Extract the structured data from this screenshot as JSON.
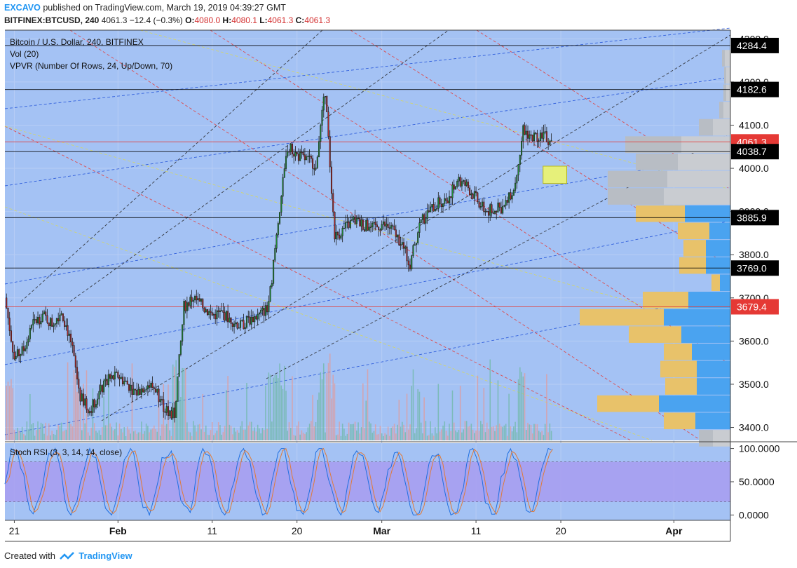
{
  "header": {
    "author": "EXCAVO",
    "published_text": "published on TradingView.com, March 19, 2019 04:39:27 GMT",
    "symbol": "BITFINEX:BTCUSD, 240",
    "last": "4061.3",
    "change": "−12.4 (−0.3%)",
    "ohlc": {
      "O": "4080.0",
      "H": "4080.1",
      "L": "4061.3",
      "C": "4061.3"
    }
  },
  "legend": {
    "title": "Bitcoin / U.S. Dollar, 240, BITFINEX",
    "vol": "Vol (20)",
    "vpvr": "VPVR (Number Of Rows, 24, Up/Down, 70)",
    "stoch": "Stoch RSI (3, 3, 14, 14, close)"
  },
  "footer": {
    "created_with": "Created with",
    "brand": "TradingView"
  },
  "colors": {
    "background": "#a4c2f4",
    "candle_up": "#1e8c36",
    "candle_down": "#b02727",
    "level_red": "#e53935",
    "level_black": "#000000",
    "vpvr_up": "#4aa3f0",
    "vpvr_down": "#e8c26a",
    "vpvr_gray": "#c9ccd1",
    "stoch_band": "#a89cf0",
    "highlight_box": "#e6f07a"
  },
  "chart_data": {
    "type": "candlestick",
    "symbol": "BITFINEX:BTCUSD",
    "timeframe": "240",
    "y_range": [
      3370,
      4320
    ],
    "y_ticks": [
      3400,
      3500,
      3600,
      3700,
      3800,
      3900,
      4000,
      4100,
      4200,
      4300
    ],
    "y_tick_labels": [
      "3400.0",
      "3500.0",
      "3600.0",
      "3700.0",
      "3800.0",
      "3900.0",
      "4000.0",
      "4100.0",
      "4200.0",
      "4300.0"
    ],
    "x_range": [
      "2019-01-20",
      "2019-04-07"
    ],
    "x_ticks": [
      {
        "date": "2019-01-21",
        "label": "21"
      },
      {
        "date": "2019-02-01",
        "label": "Feb"
      },
      {
        "date": "2019-02-11",
        "label": "11"
      },
      {
        "date": "2019-02-20",
        "label": "20"
      },
      {
        "date": "2019-03-01",
        "label": "Mar"
      },
      {
        "date": "2019-03-11",
        "label": "11"
      },
      {
        "date": "2019-03-20",
        "label": "20"
      },
      {
        "date": "2019-04-01",
        "label": "Apr"
      }
    ],
    "price_path": [
      [
        "2019-01-20",
        3700
      ],
      [
        "2019-01-21",
        3560
      ],
      [
        "2019-01-22",
        3580
      ],
      [
        "2019-01-23",
        3640
      ],
      [
        "2019-01-24",
        3660
      ],
      [
        "2019-01-25",
        3640
      ],
      [
        "2019-01-26",
        3670
      ],
      [
        "2019-01-27",
        3600
      ],
      [
        "2019-01-28",
        3470
      ],
      [
        "2019-01-29",
        3440
      ],
      [
        "2019-01-30",
        3480
      ],
      [
        "2019-01-31",
        3510
      ],
      [
        "2019-02-01",
        3520
      ],
      [
        "2019-02-02",
        3500
      ],
      [
        "2019-02-03",
        3480
      ],
      [
        "2019-02-04",
        3500
      ],
      [
        "2019-02-05",
        3490
      ],
      [
        "2019-02-06",
        3440
      ],
      [
        "2019-02-07",
        3430
      ],
      [
        "2019-02-08",
        3680
      ],
      [
        "2019-02-09",
        3700
      ],
      [
        "2019-02-10",
        3680
      ],
      [
        "2019-02-11",
        3660
      ],
      [
        "2019-02-12",
        3665
      ],
      [
        "2019-02-13",
        3650
      ],
      [
        "2019-02-14",
        3635
      ],
      [
        "2019-02-15",
        3650
      ],
      [
        "2019-02-16",
        3660
      ],
      [
        "2019-02-17",
        3680
      ],
      [
        "2019-02-18",
        3880
      ],
      [
        "2019-02-19",
        4050
      ],
      [
        "2019-02-20",
        4030
      ],
      [
        "2019-02-21",
        4020
      ],
      [
        "2019-02-22",
        4010
      ],
      [
        "2019-02-23",
        4180
      ],
      [
        "2019-02-24",
        3840
      ],
      [
        "2019-02-25",
        3860
      ],
      [
        "2019-02-26",
        3880
      ],
      [
        "2019-02-27",
        3870
      ],
      [
        "2019-02-28",
        3860
      ],
      [
        "2019-03-01",
        3870
      ],
      [
        "2019-03-02",
        3860
      ],
      [
        "2019-03-03",
        3830
      ],
      [
        "2019-03-04",
        3780
      ],
      [
        "2019-03-05",
        3870
      ],
      [
        "2019-03-06",
        3900
      ],
      [
        "2019-03-07",
        3920
      ],
      [
        "2019-03-08",
        3930
      ],
      [
        "2019-03-09",
        3970
      ],
      [
        "2019-03-10",
        3960
      ],
      [
        "2019-03-11",
        3930
      ],
      [
        "2019-03-12",
        3900
      ],
      [
        "2019-03-13",
        3905
      ],
      [
        "2019-03-14",
        3910
      ],
      [
        "2019-03-15",
        3950
      ],
      [
        "2019-03-16",
        4090
      ],
      [
        "2019-03-17",
        4070
      ],
      [
        "2019-03-18",
        4080
      ],
      [
        "2019-03-19",
        4061
      ]
    ],
    "levels": [
      {
        "price": 4284.4,
        "label": "4284.4",
        "color": "black"
      },
      {
        "price": 4182.6,
        "label": "4182.6",
        "color": "black"
      },
      {
        "price": 4061.3,
        "label": "4061.3",
        "color": "red"
      },
      {
        "price": 4038.7,
        "label": "4038.7",
        "color": "black"
      },
      {
        "price": 3885.9,
        "label": "3885.9",
        "color": "black"
      },
      {
        "price": 3769.0,
        "label": "3769.0",
        "color": "black"
      },
      {
        "price": 3679.4,
        "label": "3679.4",
        "color": "red"
      }
    ],
    "highlight_box": {
      "date_start": "2019-03-17",
      "date_end": "2019-03-21",
      "price_low": 3965,
      "price_high": 4005
    },
    "vpvr": [
      {
        "price": 4255,
        "up": 8,
        "down": 4,
        "gray": true
      },
      {
        "price": 4215,
        "up": 6,
        "down": 3,
        "gray": true
      },
      {
        "price": 4175,
        "up": 6,
        "down": 4,
        "gray": true
      },
      {
        "price": 4135,
        "up": 10,
        "down": 6,
        "gray": true
      },
      {
        "price": 4095,
        "up": 25,
        "down": 20,
        "gray": true
      },
      {
        "price": 4055,
        "up": 70,
        "down": 80,
        "gray": true
      },
      {
        "price": 4015,
        "up": 75,
        "down": 60,
        "gray": true
      },
      {
        "price": 3975,
        "up": 90,
        "down": 85,
        "gray": true
      },
      {
        "price": 3935,
        "up": 95,
        "down": 80,
        "gray": true
      },
      {
        "price": 3895,
        "up": 65,
        "down": 70,
        "gray": false
      },
      {
        "price": 3855,
        "up": 30,
        "down": 45,
        "gray": false
      },
      {
        "price": 3815,
        "up": 35,
        "down": 32,
        "gray": false
      },
      {
        "price": 3775,
        "up": 35,
        "down": 38,
        "gray": false
      },
      {
        "price": 3735,
        "up": 15,
        "down": 12,
        "gray": false
      },
      {
        "price": 3695,
        "up": 60,
        "down": 65,
        "gray": false
      },
      {
        "price": 3655,
        "up": 95,
        "down": 120,
        "gray": false
      },
      {
        "price": 3615,
        "up": 70,
        "down": 75,
        "gray": false
      },
      {
        "price": 3575,
        "up": 55,
        "down": 40,
        "gray": false
      },
      {
        "price": 3535,
        "up": 48,
        "down": 52,
        "gray": false
      },
      {
        "price": 3495,
        "up": 48,
        "down": 45,
        "gray": false
      },
      {
        "price": 3455,
        "up": 102,
        "down": 88,
        "gray": false
      },
      {
        "price": 3415,
        "up": 50,
        "down": 45,
        "gray": false
      },
      {
        "price": 3375,
        "up": 25,
        "down": 20,
        "gray": true
      }
    ],
    "stoch_rsi": {
      "y_range": [
        -8,
        108
      ],
      "ticks": [
        {
          "value": 100,
          "label": "100.0000"
        },
        {
          "value": 50,
          "label": "50.0000"
        },
        {
          "value": 0,
          "label": "0.0000"
        }
      ],
      "band": [
        20,
        80
      ]
    }
  }
}
